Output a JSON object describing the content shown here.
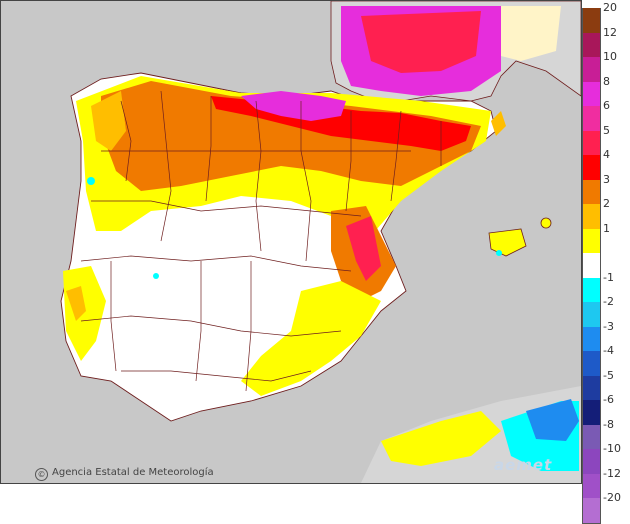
{
  "map": {
    "credit": "Agencia Estatal de Meteorología",
    "credit_symbol": "©",
    "brand": "aemet"
  },
  "legend": {
    "positive": [
      {
        "label": "20",
        "color": "#8b3c10"
      },
      {
        "label": "12",
        "color": "#a8175a"
      },
      {
        "label": "10",
        "color": "#c81e96"
      },
      {
        "label": "8",
        "color": "#e62ddc"
      },
      {
        "label": "6",
        "color": "#f02da0"
      },
      {
        "label": "5",
        "color": "#ff2050"
      },
      {
        "label": "4",
        "color": "#ff0000"
      },
      {
        "label": "3",
        "color": "#f07a00"
      },
      {
        "label": "2",
        "color": "#ffbe00"
      },
      {
        "label": "1",
        "color": "#ffff00"
      }
    ],
    "negative": [
      {
        "label": "-1",
        "color": "#00ffff"
      },
      {
        "label": "-2",
        "color": "#1ec8f0"
      },
      {
        "label": "-3",
        "color": "#1e8cf0"
      },
      {
        "label": "-4",
        "color": "#1e5ac8"
      },
      {
        "label": "-5",
        "color": "#1e3ca0"
      },
      {
        "label": "-6",
        "color": "#141e78"
      },
      {
        "label": "-8",
        "color": "#7a5ab4"
      },
      {
        "label": "-10",
        "color": "#8c46be"
      },
      {
        "label": "-12",
        "color": "#a050c8"
      },
      {
        "label": "-20",
        "color": "#b46ed2"
      }
    ],
    "neutral_color": "#ffffff"
  },
  "colors": {
    "sea": "#c8c8c8",
    "land_no_data": "#d2d2d2",
    "neutral": "#ffffff",
    "borders": "#6e1e1e"
  }
}
